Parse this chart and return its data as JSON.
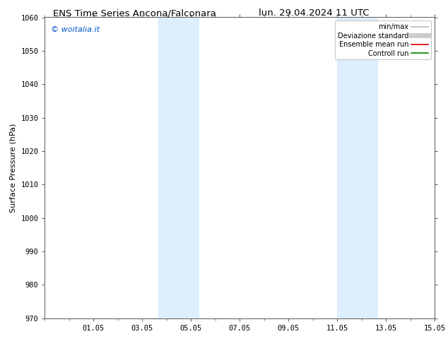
{
  "title_left": "ENS Time Series Ancona/Falconara",
  "title_right": "lun. 29.04.2024 11 UTC",
  "ylabel": "Surface Pressure (hPa)",
  "ylim": [
    970,
    1060
  ],
  "yticks": [
    970,
    980,
    990,
    1000,
    1010,
    1020,
    1030,
    1040,
    1050,
    1060
  ],
  "xlim": [
    0,
    16
  ],
  "xtick_labels": [
    "01.05",
    "03.05",
    "05.05",
    "07.05",
    "09.05",
    "11.05",
    "13.05",
    "15.05"
  ],
  "xtick_positions": [
    2,
    4,
    6,
    8,
    10,
    12,
    14,
    16
  ],
  "shaded_bands": [
    {
      "x_start": 4.67,
      "x_end": 6.33
    },
    {
      "x_start": 12.0,
      "x_end": 13.67
    }
  ],
  "band_color": "#ddeeff",
  "watermark_text": "© woitalia.it",
  "watermark_color": "#0055cc",
  "legend_entries": [
    {
      "label": "min/max",
      "color": "#bbbbbb",
      "lw": 1.2
    },
    {
      "label": "Deviazione standard",
      "color": "#cccccc",
      "lw": 5
    },
    {
      "label": "Ensemble mean run",
      "color": "#dd0000",
      "lw": 1.2
    },
    {
      "label": "Controll run",
      "color": "#008800",
      "lw": 1.2
    }
  ],
  "bg_color": "#ffffff",
  "title_fontsize": 9.5,
  "ylabel_fontsize": 8,
  "tick_fontsize": 7.5,
  "watermark_fontsize": 8,
  "legend_fontsize": 7
}
